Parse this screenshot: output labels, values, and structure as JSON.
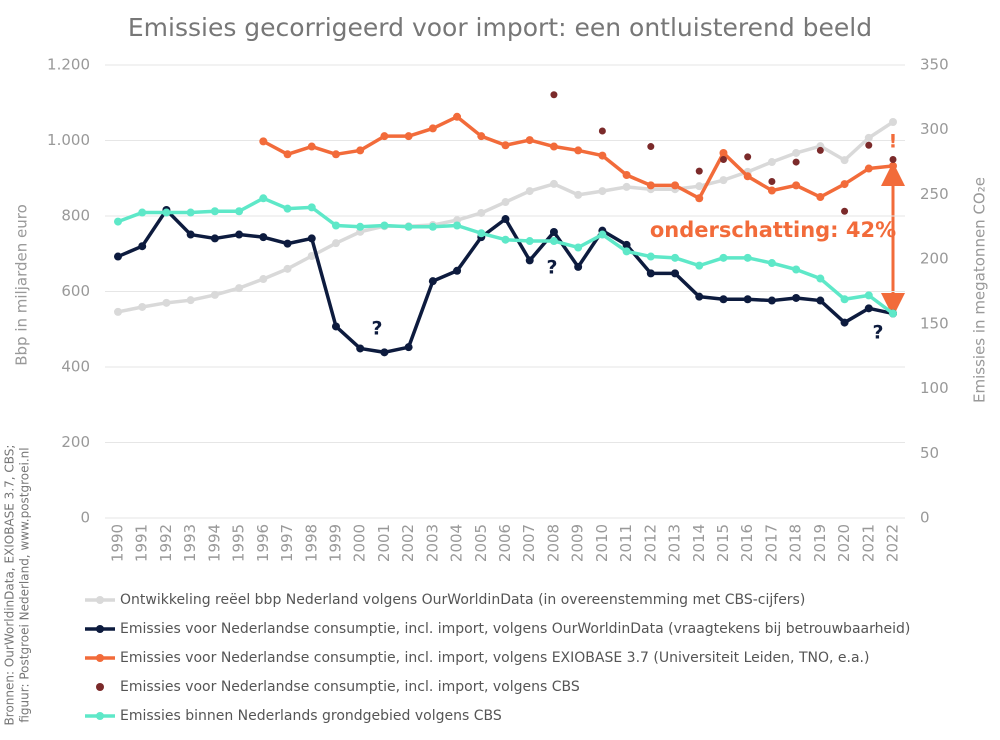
{
  "chart_data": {
    "type": "line",
    "title": "Emissies gecorrigeerd voor import: een ontluisterend beeld",
    "ylabel": "Bbp in miljarden euro",
    "y2label": "Emissies in megatonnen CO₂e",
    "source": [
      "Bronnen: OurWorldinData, EXIOBASE 3.7, CBS;",
      "figuur: Postgroei Nederland, www.postgroei.nl"
    ],
    "x": [
      1990,
      1991,
      1992,
      1993,
      1994,
      1995,
      1996,
      1997,
      1998,
      1999,
      2000,
      2001,
      2002,
      2003,
      2004,
      2005,
      2006,
      2007,
      2008,
      2009,
      2010,
      2011,
      2012,
      2013,
      2014,
      2015,
      2016,
      2017,
      2018,
      2019,
      2020,
      2021,
      2022
    ],
    "xlim": [
      1990,
      2022
    ],
    "ylim": [
      0,
      1200
    ],
    "yticks": [
      0,
      200,
      400,
      600,
      800,
      {
        "value": 1000,
        "label": "1.000"
      },
      {
        "value": 1200,
        "label": "1.200"
      }
    ],
    "y2lim": [
      0,
      350
    ],
    "y2ticks": [
      0,
      50,
      100,
      150,
      200,
      250,
      300,
      350
    ],
    "grid": true,
    "series": [
      {
        "name": "Ontwikkeling reëel bbp Nederland volgens OurWorldinData (in overeenstemming met CBS-cijfers)",
        "color": "#d9d9d9",
        "mode": "lines",
        "values": [
          546,
          559,
          570,
          577,
          591,
          609,
          633,
          660,
          694,
          728,
          758,
          773,
          773,
          776,
          789,
          808,
          837,
          866,
          885,
          856,
          866,
          877,
          871,
          871,
          879,
          895,
          917,
          943,
          967,
          985,
          948,
          1007,
          1049
        ]
      },
      {
        "name": "Emissies voor Nederlandse consumptie, incl. import, volgens OurWorldinData (vraagtekens bij betrouwbaarheid)",
        "color": "#0d1b3e",
        "mode": "lines",
        "axis": "y2",
        "values": [
          202,
          210,
          238,
          219,
          216,
          219,
          217,
          212,
          216,
          148,
          131,
          128,
          132,
          183,
          191,
          217,
          231,
          199,
          221,
          194,
          222,
          211,
          189,
          189,
          171,
          169,
          169,
          168,
          170,
          168,
          151,
          162,
          158
        ]
      },
      {
        "name": "Emissies voor Nederlandse consumptie, incl. import, volgens EXIOBASE 3.7 (Universiteit Leiden, TNO, e.a.)",
        "color": "#f26b3a",
        "mode": "lines",
        "axis": "y2",
        "values": [
          null,
          null,
          null,
          null,
          null,
          null,
          291,
          281,
          287,
          281,
          284,
          295,
          295,
          301,
          310,
          295,
          288,
          292,
          287,
          284,
          280,
          265,
          257,
          257,
          247,
          282,
          264,
          253,
          257,
          248,
          258,
          270,
          272
        ]
      },
      {
        "name": "Emissies voor Nederlandse consumptie, incl. import, volgens CBS",
        "color": "#7b2a2a",
        "mode": "markers",
        "axis": "y2",
        "values": [
          null,
          null,
          null,
          null,
          null,
          null,
          null,
          null,
          null,
          null,
          null,
          null,
          null,
          null,
          null,
          null,
          null,
          null,
          327,
          null,
          299,
          null,
          287,
          null,
          268,
          277,
          279,
          260,
          275,
          284,
          237,
          288,
          277
        ]
      },
      {
        "name": "Emissies binnen Nederlands grondgebied volgens CBS",
        "color": "#5ee8c8",
        "mode": "lines",
        "axis": "y2",
        "values": [
          229,
          236,
          236,
          236,
          237,
          237,
          247,
          239,
          240,
          226,
          225,
          226,
          225,
          225,
          226,
          220,
          215,
          214,
          214,
          209,
          219,
          206,
          202,
          201,
          195,
          201,
          201,
          197,
          192,
          185,
          169,
          172,
          158
        ]
      }
    ],
    "annotations": [
      {
        "text": "onderschatting: 42%",
        "color": "#f26b3a"
      },
      {
        "text": "?",
        "color": "#0d1b3e"
      },
      {
        "text": "?",
        "color": "#0d1b3e"
      },
      {
        "text": "?",
        "color": "#0d1b3e"
      },
      {
        "text": "!",
        "color": "#f26b3a"
      }
    ]
  }
}
